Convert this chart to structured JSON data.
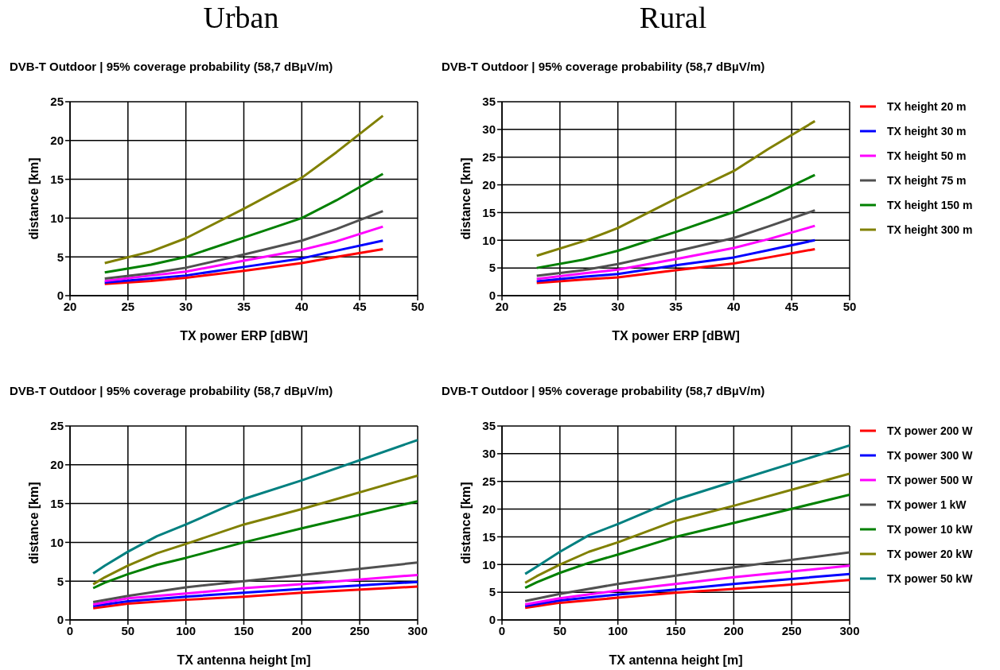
{
  "chart_data": [
    {
      "type": "line",
      "title": "Urban",
      "subtitle": "DVB-T Outdoor | 95% coverage probability (58,7 dBµV/m)",
      "xlabel": "TX power ERP [dBW]",
      "ylabel": "distance [km]",
      "xlim": [
        20,
        50
      ],
      "xticks": [
        20,
        25,
        30,
        35,
        40,
        45,
        50
      ],
      "ylim": [
        0,
        25
      ],
      "yticks": [
        0,
        5,
        10,
        15,
        20,
        25
      ],
      "grid": true,
      "legend": false,
      "marker": "none",
      "line_style": "solid",
      "series": [
        {
          "color": "#ff0000",
          "x": [
            23,
            27,
            30,
            35,
            40,
            43,
            47
          ],
          "values": [
            1.5,
            1.9,
            2.3,
            3.2,
            4.2,
            5.0,
            6.0
          ]
        },
        {
          "color": "#0000ff",
          "x": [
            23,
            27,
            30,
            35,
            40,
            43,
            47
          ],
          "values": [
            1.7,
            2.2,
            2.6,
            3.7,
            4.8,
            5.8,
            7.1
          ]
        },
        {
          "color": "#ff00ff",
          "x": [
            23,
            27,
            30,
            35,
            40,
            43,
            47
          ],
          "values": [
            1.9,
            2.6,
            3.1,
            4.5,
            5.9,
            7.0,
            8.9
          ]
        },
        {
          "color": "#505050",
          "x": [
            23,
            27,
            30,
            35,
            40,
            43,
            47
          ],
          "values": [
            2.2,
            2.9,
            3.6,
            5.3,
            7.1,
            8.6,
            10.9
          ]
        },
        {
          "color": "#008000",
          "x": [
            23,
            27,
            30,
            35,
            40,
            43,
            47
          ],
          "values": [
            3.0,
            4.0,
            5.0,
            7.5,
            10.0,
            12.3,
            15.7
          ]
        },
        {
          "color": "#808000",
          "x": [
            23,
            27,
            30,
            35,
            40,
            43,
            47
          ],
          "values": [
            4.2,
            5.7,
            7.4,
            11.2,
            15.2,
            18.5,
            23.2
          ]
        }
      ]
    },
    {
      "type": "line",
      "title": "Rural",
      "subtitle": "DVB-T Outdoor | 95% coverage probability (58,7 dBµV/m)",
      "xlabel": "TX power ERP [dBW]",
      "ylabel": "distance [km]",
      "xlim": [
        20,
        50
      ],
      "xticks": [
        20,
        25,
        30,
        35,
        40,
        45,
        50
      ],
      "ylim": [
        0,
        35
      ],
      "yticks": [
        0,
        5,
        10,
        15,
        20,
        25,
        30,
        35
      ],
      "grid": true,
      "legend": "right",
      "marker": "none",
      "line_style": "solid",
      "series": [
        {
          "name": "TX height 20 m",
          "color": "#ff0000",
          "x": [
            23,
            27,
            30,
            35,
            40,
            43,
            47
          ],
          "values": [
            2.3,
            2.9,
            3.3,
            4.6,
            5.8,
            6.9,
            8.4
          ]
        },
        {
          "name": "TX height 30 m",
          "color": "#0000ff",
          "x": [
            23,
            27,
            30,
            35,
            40,
            43,
            47
          ],
          "values": [
            2.6,
            3.4,
            3.9,
            5.5,
            6.9,
            8.2,
            10.0
          ]
        },
        {
          "name": "TX height 50 m",
          "color": "#ff00ff",
          "x": [
            23,
            27,
            30,
            35,
            40,
            43,
            47
          ],
          "values": [
            3.0,
            4.0,
            4.7,
            6.6,
            8.6,
            10.2,
            12.6
          ]
        },
        {
          "name": "TX height 75 m",
          "color": "#505050",
          "x": [
            23,
            27,
            30,
            35,
            40,
            43,
            47
          ],
          "values": [
            3.6,
            4.6,
            5.7,
            8.0,
            10.4,
            12.5,
            15.4
          ]
        },
        {
          "name": "TX height 150 m",
          "color": "#008000",
          "x": [
            23,
            27,
            30,
            35,
            40,
            43,
            47
          ],
          "values": [
            5.0,
            6.5,
            8.1,
            11.5,
            15.1,
            17.8,
            21.8
          ]
        },
        {
          "name": "TX height 300 m",
          "color": "#808000",
          "x": [
            23,
            27,
            30,
            35,
            40,
            43,
            47
          ],
          "values": [
            7.2,
            9.8,
            12.2,
            17.5,
            22.5,
            26.5,
            31.5
          ]
        }
      ]
    },
    {
      "type": "line",
      "title": "DVB-T Outdoor | 95% coverage probability (58,7 dBµV/m)",
      "xlabel": "TX antenna height [m]",
      "ylabel": "distance [km]",
      "xlim": [
        0,
        300
      ],
      "xticks": [
        0,
        50,
        100,
        150,
        200,
        250,
        300
      ],
      "ylim": [
        0,
        25
      ],
      "yticks": [
        0,
        5,
        10,
        15,
        20,
        25
      ],
      "grid": true,
      "legend": false,
      "marker": "none",
      "line_style": "solid",
      "series": [
        {
          "color": "#ff0000",
          "x": [
            20,
            50,
            100,
            150,
            200,
            300
          ],
          "values": [
            1.5,
            2.1,
            2.6,
            3.0,
            3.5,
            4.3
          ]
        },
        {
          "color": "#0000ff",
          "x": [
            20,
            50,
            100,
            150,
            200,
            300
          ],
          "values": [
            1.8,
            2.4,
            3.0,
            3.5,
            4.0,
            4.9
          ]
        },
        {
          "color": "#ff00ff",
          "x": [
            20,
            50,
            100,
            150,
            200,
            300
          ],
          "values": [
            2.0,
            2.8,
            3.4,
            4.1,
            4.6,
            5.8
          ]
        },
        {
          "color": "#505050",
          "x": [
            20,
            50,
            100,
            150,
            200,
            300
          ],
          "values": [
            2.3,
            3.1,
            4.2,
            5.0,
            5.8,
            7.4
          ]
        },
        {
          "color": "#008000",
          "x": [
            20,
            30,
            50,
            75,
            100,
            150,
            200,
            300
          ],
          "values": [
            4.1,
            4.8,
            5.9,
            7.1,
            8.0,
            10.0,
            11.8,
            15.3
          ]
        },
        {
          "color": "#808000",
          "x": [
            20,
            30,
            50,
            75,
            100,
            150,
            200,
            300
          ],
          "values": [
            4.6,
            5.5,
            7.0,
            8.6,
            9.8,
            12.3,
            14.3,
            18.6
          ]
        },
        {
          "color": "#008080",
          "x": [
            20,
            30,
            50,
            75,
            100,
            150,
            200,
            300
          ],
          "values": [
            6.0,
            7.0,
            8.8,
            10.8,
            12.3,
            15.6,
            18.0,
            23.2
          ]
        }
      ]
    },
    {
      "type": "line",
      "title": "DVB-T Outdoor | 95% coverage probability (58,7 dBµV/m)",
      "xlabel": "TX antenna height [m]",
      "ylabel": "distance [km]",
      "xlim": [
        0,
        300
      ],
      "xticks": [
        0,
        50,
        100,
        150,
        200,
        250,
        300
      ],
      "ylim": [
        0,
        35
      ],
      "yticks": [
        0,
        5,
        10,
        15,
        20,
        25,
        30,
        35
      ],
      "grid": true,
      "legend": "right",
      "marker": "none",
      "line_style": "solid",
      "series": [
        {
          "name": "TX power 200 W",
          "color": "#ff0000",
          "x": [
            20,
            50,
            100,
            150,
            200,
            300
          ],
          "values": [
            2.2,
            3.1,
            4.0,
            4.9,
            5.6,
            7.2
          ]
        },
        {
          "name": "TX power 300 W",
          "color": "#0000ff",
          "x": [
            20,
            50,
            100,
            150,
            200,
            300
          ],
          "values": [
            2.5,
            3.5,
            4.6,
            5.5,
            6.5,
            8.3
          ]
        },
        {
          "name": "TX power 500 W",
          "color": "#ff00ff",
          "x": [
            20,
            50,
            100,
            150,
            200,
            300
          ],
          "values": [
            2.8,
            3.9,
            5.3,
            6.5,
            7.7,
            9.8
          ]
        },
        {
          "name": "TX power 1 kW",
          "color": "#505050",
          "x": [
            20,
            50,
            100,
            150,
            200,
            300
          ],
          "values": [
            3.4,
            4.7,
            6.5,
            8.0,
            9.5,
            12.2
          ]
        },
        {
          "name": "TX power 10 kW",
          "color": "#008000",
          "x": [
            20,
            30,
            50,
            75,
            100,
            150,
            200,
            300
          ],
          "values": [
            5.8,
            6.8,
            8.5,
            10.3,
            11.8,
            15.0,
            17.5,
            22.6
          ]
        },
        {
          "name": "TX power 20 kW",
          "color": "#808000",
          "x": [
            20,
            30,
            50,
            75,
            100,
            150,
            200,
            300
          ],
          "values": [
            6.7,
            7.9,
            10.0,
            12.3,
            14.0,
            17.9,
            20.6,
            26.4
          ]
        },
        {
          "name": "TX power 50 kW",
          "color": "#008080",
          "x": [
            20,
            30,
            50,
            75,
            100,
            150,
            200,
            300
          ],
          "values": [
            8.3,
            9.6,
            12.3,
            15.3,
            17.3,
            21.7,
            25.0,
            31.5
          ]
        }
      ]
    }
  ]
}
